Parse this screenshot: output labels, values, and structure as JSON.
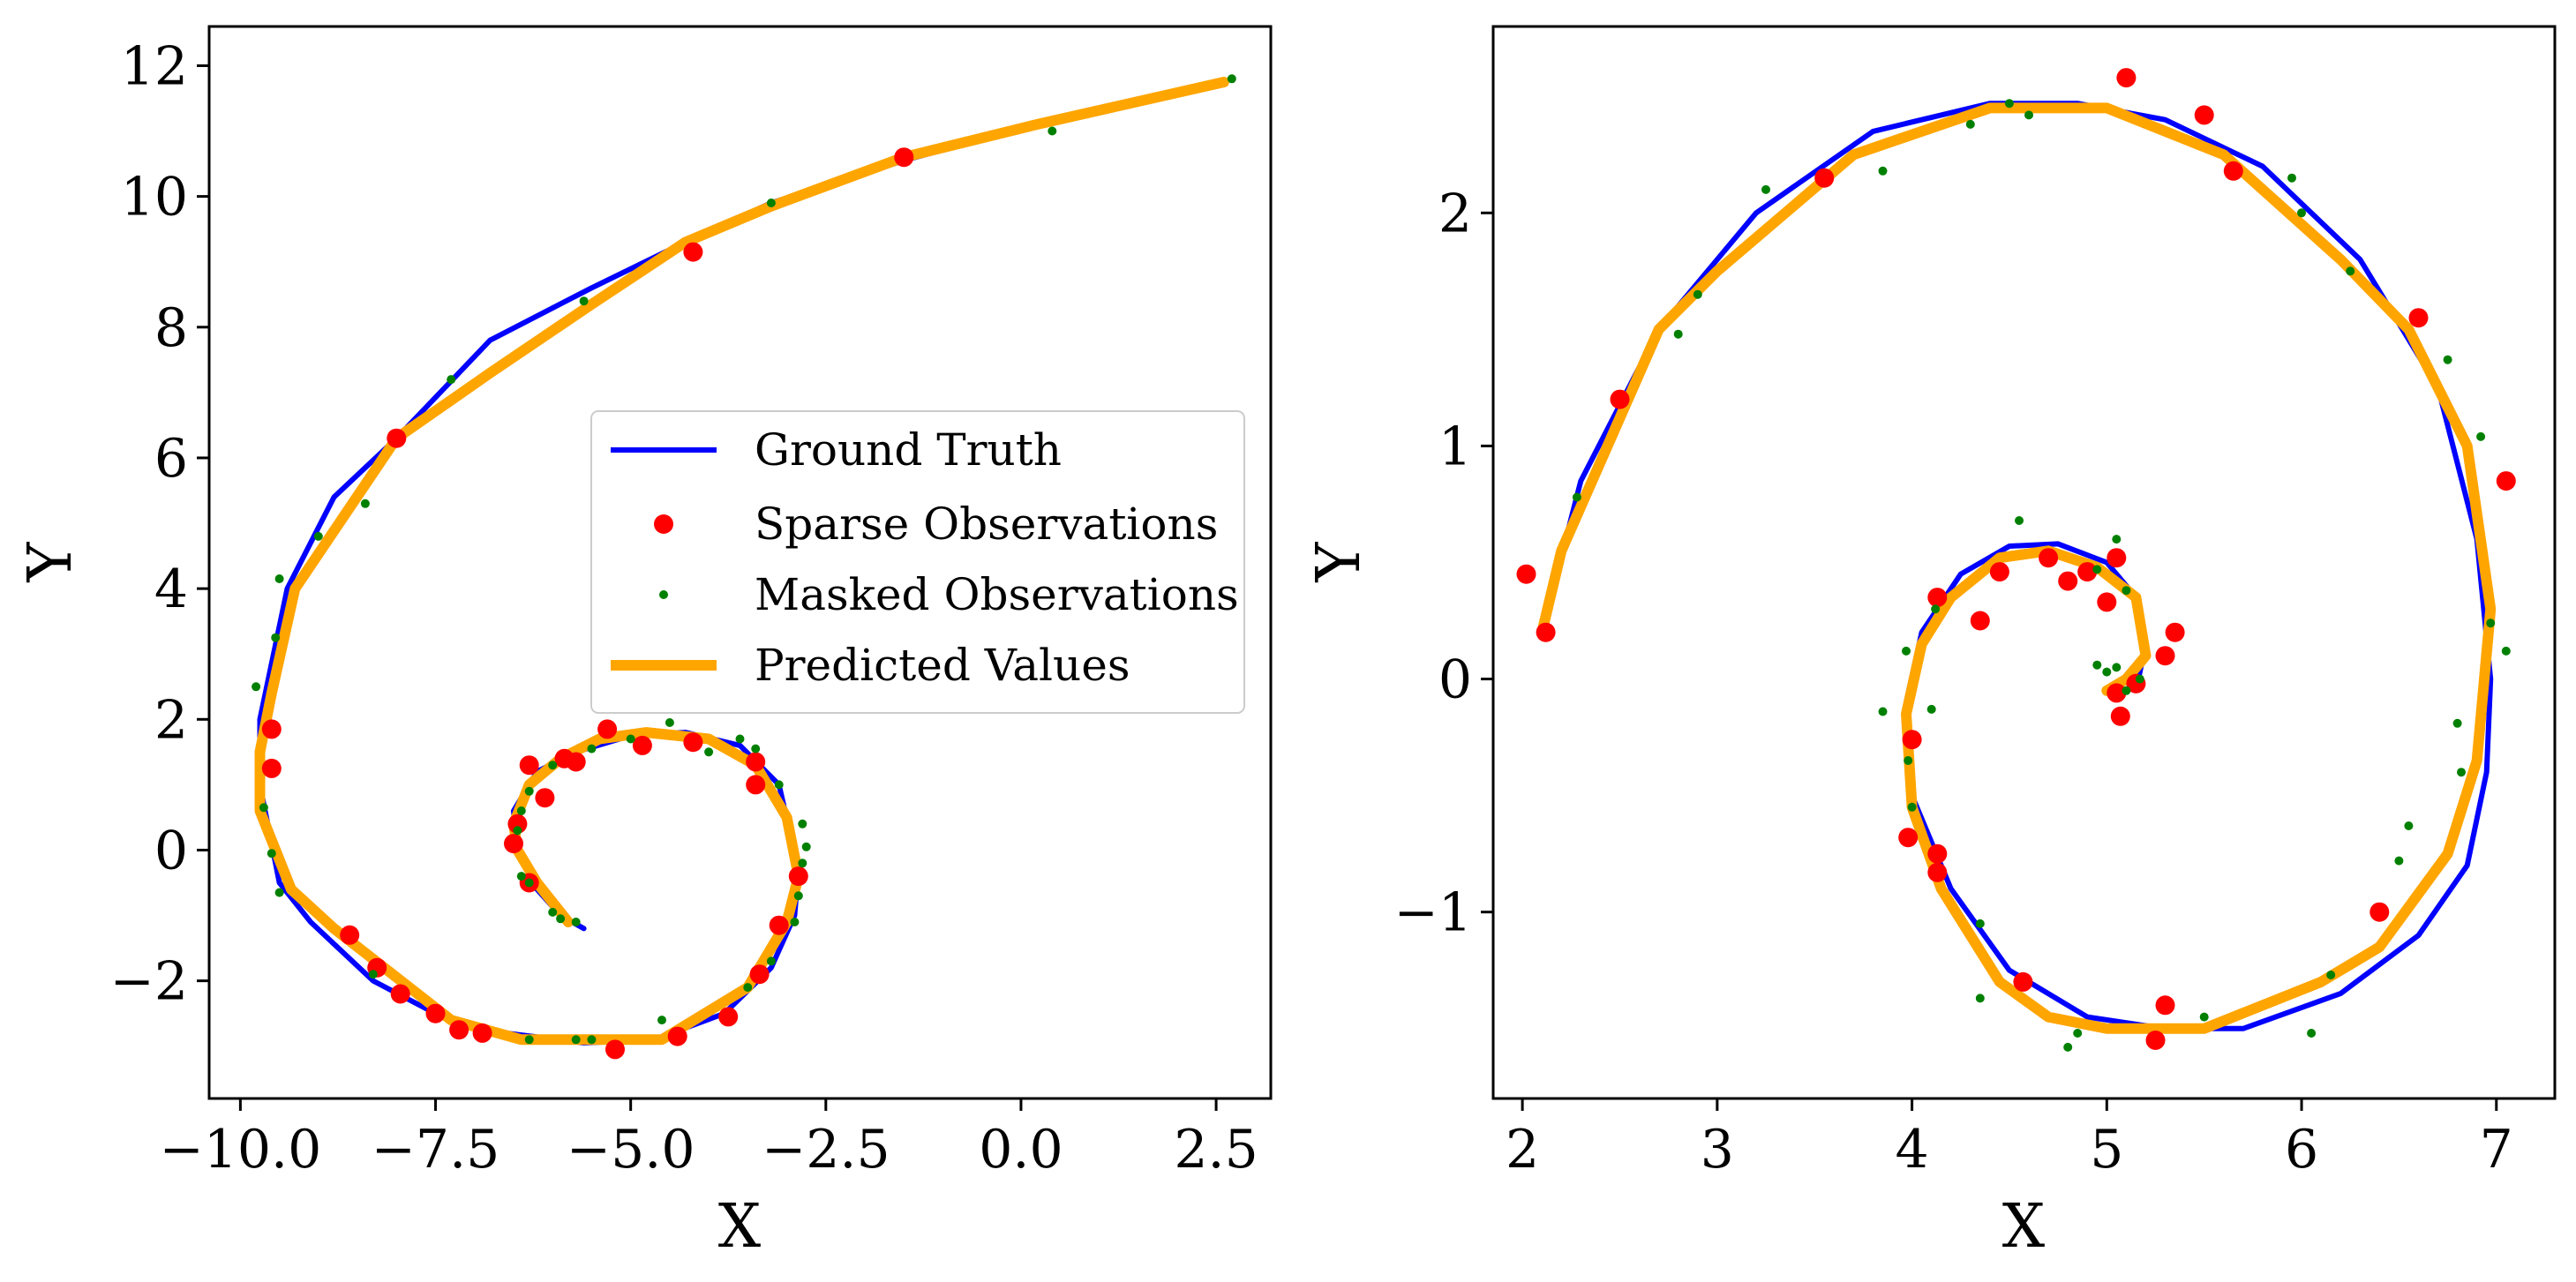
{
  "legend": {
    "ground_truth": "Ground Truth",
    "sparse": "Sparse Observations",
    "masked": "Masked Observations",
    "predicted": "Predicted Values"
  },
  "colors": {
    "ground_truth": "#0000ff",
    "sparse": "#ff0000",
    "masked": "#008000",
    "predicted": "#ffa500"
  },
  "chart_data": [
    {
      "type": "line",
      "xlabel": "X",
      "ylabel": "Y",
      "xlim": [
        -10.4,
        3.2
      ],
      "ylim": [
        -3.8,
        12.6
      ],
      "xticks": [
        -10.0,
        -7.5,
        -5.0,
        -2.5,
        0.0,
        2.5
      ],
      "xtick_labels": [
        "−10.0",
        "−7.5",
        "−5.0",
        "−2.5",
        "0.0",
        "2.5"
      ],
      "yticks": [
        -2,
        0,
        2,
        4,
        6,
        8,
        10,
        12
      ],
      "ytick_labels": [
        "−2",
        "0",
        "2",
        "4",
        "6",
        "8",
        "10",
        "12"
      ],
      "legend_position": "center-right",
      "series": [
        {
          "name": "Ground Truth",
          "kind": "line",
          "x": [
            2.6,
            0.2,
            -1.5,
            -3.2,
            -4.3,
            -5.5,
            -6.8,
            -8.0,
            -8.8,
            -9.4,
            -9.75,
            -9.75,
            -9.5,
            -9.1,
            -8.3,
            -7.5,
            -6.6,
            -5.6,
            -4.7,
            -3.8,
            -3.2,
            -2.9,
            -2.85,
            -3.1,
            -3.6,
            -4.3,
            -5.0,
            -5.7,
            -6.2,
            -6.5,
            -6.45,
            -6.2,
            -5.9,
            -5.6
          ],
          "y": [
            11.75,
            11.1,
            10.55,
            9.9,
            9.3,
            8.6,
            7.8,
            6.3,
            5.4,
            4.0,
            2.0,
            1.0,
            -0.5,
            -1.1,
            -2.0,
            -2.5,
            -2.8,
            -2.95,
            -2.9,
            -2.5,
            -1.8,
            -1.0,
            -0.3,
            1.0,
            1.6,
            1.8,
            1.75,
            1.5,
            1.2,
            0.6,
            0.0,
            -0.6,
            -1.0,
            -1.2
          ]
        },
        {
          "name": "Predicted Values",
          "kind": "line",
          "x": [
            2.6,
            0.2,
            -1.5,
            -3.2,
            -4.3,
            -5.5,
            -6.8,
            -8.0,
            -9.3,
            -9.6,
            -9.75,
            -9.75,
            -9.35,
            -8.8,
            -7.3,
            -6.4,
            -4.6,
            -3.5,
            -3.0,
            -2.85,
            -3.0,
            -3.4,
            -4.0,
            -4.8,
            -5.4,
            -5.9,
            -6.3,
            -6.5,
            -6.45,
            -6.2,
            -5.8
          ],
          "y": [
            11.75,
            11.1,
            10.6,
            9.85,
            9.3,
            8.35,
            7.3,
            6.3,
            4.0,
            2.4,
            1.5,
            0.6,
            -0.6,
            -1.2,
            -2.6,
            -2.9,
            -2.9,
            -2.1,
            -1.1,
            -0.4,
            0.5,
            1.3,
            1.7,
            1.8,
            1.7,
            1.4,
            1.0,
            0.4,
            0.0,
            -0.5,
            -1.1
          ]
        },
        {
          "name": "Sparse Observations",
          "kind": "scatter",
          "x": [
            -1.5,
            -4.2,
            -8.0,
            -9.6,
            -9.6,
            -8.6,
            -8.25,
            -7.95,
            -7.5,
            -7.2,
            -6.9,
            -5.2,
            -4.4,
            -3.75,
            -3.35,
            -3.1,
            -2.85,
            -3.4,
            -3.4,
            -4.2,
            -4.85,
            -5.3,
            -5.7,
            -5.85,
            -6.1,
            -6.3,
            -6.45,
            -6.5,
            -6.3
          ],
          "y": [
            10.6,
            9.15,
            6.3,
            1.85,
            1.25,
            -1.3,
            -1.8,
            -2.2,
            -2.5,
            -2.75,
            -2.8,
            -3.05,
            -2.85,
            -2.55,
            -1.9,
            -1.15,
            -0.4,
            1.0,
            1.35,
            1.65,
            1.6,
            1.85,
            1.35,
            1.4,
            0.8,
            1.3,
            0.4,
            0.1,
            -0.5
          ]
        },
        {
          "name": "Masked Observations",
          "kind": "scatter",
          "x": [
            2.7,
            0.4,
            -3.2,
            -5.6,
            -7.3,
            -8.4,
            -9.0,
            -9.5,
            -9.55,
            -9.8,
            -9.7,
            -9.6,
            -9.5,
            -8.3,
            -6.3,
            -5.7,
            -5.5,
            -4.6,
            -3.5,
            -3.2,
            -2.9,
            -2.85,
            -2.8,
            -2.75,
            -2.8,
            -3.1,
            -3.4,
            -3.6,
            -4.0,
            -4.5,
            -5.0,
            -5.5,
            -6.0,
            -6.3,
            -6.4,
            -6.45,
            -6.4,
            -6.3,
            -6.0,
            -5.9,
            -5.7
          ],
          "y": [
            11.8,
            11.0,
            9.9,
            8.4,
            7.2,
            5.3,
            4.8,
            4.15,
            3.25,
            2.5,
            0.65,
            -0.05,
            -0.65,
            -1.9,
            -2.9,
            -2.9,
            -2.9,
            -2.6,
            -2.1,
            -1.7,
            -1.1,
            -0.7,
            -0.2,
            0.05,
            0.4,
            1.0,
            1.55,
            1.7,
            1.5,
            1.95,
            1.7,
            1.55,
            1.3,
            0.9,
            0.6,
            0.3,
            -0.4,
            -0.5,
            -0.95,
            -1.05,
            -1.1
          ]
        }
      ]
    },
    {
      "type": "line",
      "xlabel": "X",
      "ylabel": "Y",
      "xlim": [
        1.85,
        7.3
      ],
      "ylim": [
        -1.8,
        2.8
      ],
      "xticks": [
        2,
        3,
        4,
        5,
        6,
        7
      ],
      "xtick_labels": [
        "2",
        "3",
        "4",
        "5",
        "6",
        "7"
      ],
      "yticks": [
        -1,
        0,
        1,
        2
      ],
      "ytick_labels": [
        "−1",
        "0",
        "1",
        "2"
      ],
      "series": [
        {
          "name": "Ground Truth",
          "kind": "line",
          "x": [
            2.1,
            2.3,
            2.7,
            3.2,
            3.8,
            4.4,
            4.85,
            5.3,
            5.8,
            6.3,
            6.7,
            6.9,
            6.97,
            6.95,
            6.85,
            6.6,
            6.2,
            5.7,
            5.3,
            4.9,
            4.5,
            4.2,
            4.0,
            3.97,
            4.05,
            4.25,
            4.5,
            4.75,
            5.0,
            5.15,
            5.2,
            5.15
          ],
          "y": [
            0.2,
            0.85,
            1.5,
            2.0,
            2.35,
            2.47,
            2.47,
            2.4,
            2.2,
            1.8,
            1.25,
            0.6,
            0.0,
            -0.4,
            -0.8,
            -1.1,
            -1.35,
            -1.5,
            -1.5,
            -1.45,
            -1.25,
            -0.9,
            -0.5,
            -0.1,
            0.2,
            0.45,
            0.57,
            0.58,
            0.5,
            0.35,
            0.15,
            -0.05
          ]
        },
        {
          "name": "Predicted Values",
          "kind": "line",
          "x": [
            2.1,
            2.2,
            2.7,
            3.0,
            3.7,
            4.4,
            5.0,
            5.6,
            6.2,
            6.55,
            6.85,
            6.97,
            6.9,
            6.75,
            6.4,
            6.1,
            5.5,
            5.0,
            4.7,
            4.45,
            4.15,
            4.0,
            3.97,
            4.05,
            4.2,
            4.45,
            4.7,
            4.95,
            5.15,
            5.2,
            5.1,
            5.0
          ],
          "y": [
            0.2,
            0.55,
            1.5,
            1.75,
            2.25,
            2.45,
            2.45,
            2.25,
            1.8,
            1.5,
            1.0,
            0.3,
            -0.35,
            -0.75,
            -1.15,
            -1.3,
            -1.5,
            -1.5,
            -1.45,
            -1.3,
            -0.9,
            -0.55,
            -0.15,
            0.15,
            0.35,
            0.52,
            0.55,
            0.48,
            0.35,
            0.1,
            0.0,
            -0.05
          ]
        },
        {
          "name": "Sparse Observations",
          "kind": "scatter",
          "x": [
            2.02,
            2.12,
            2.5,
            3.55,
            5.1,
            5.5,
            5.65,
            6.6,
            7.05,
            6.4,
            5.3,
            5.25,
            4.57,
            4.13,
            4.13,
            3.98,
            4.0,
            4.13,
            4.35,
            4.45,
            4.7,
            4.8,
            4.9,
            5.0,
            5.05,
            5.35,
            5.3,
            5.15,
            5.05,
            5.07
          ],
          "y": [
            0.45,
            0.2,
            1.2,
            2.15,
            2.58,
            2.42,
            2.18,
            1.55,
            0.85,
            -1.0,
            -1.4,
            -1.55,
            -1.3,
            -0.75,
            -0.83,
            -0.68,
            -0.26,
            0.35,
            0.25,
            0.46,
            0.52,
            0.42,
            0.46,
            0.33,
            0.52,
            0.2,
            0.1,
            -0.02,
            -0.06,
            -0.16
          ]
        },
        {
          "name": "Masked Observations",
          "kind": "scatter",
          "x": [
            2.28,
            2.8,
            2.9,
            3.25,
            3.85,
            4.3,
            4.5,
            4.6,
            5.95,
            6.0,
            6.25,
            6.75,
            6.92,
            6.97,
            7.05,
            6.8,
            6.82,
            6.55,
            6.5,
            6.15,
            6.05,
            5.5,
            4.85,
            4.8,
            4.35,
            4.35,
            4.0,
            3.98,
            3.85,
            3.97,
            4.12,
            4.1,
            4.55,
            4.95,
            5.05,
            5.1,
            5.05,
            5.1,
            5.17,
            4.95,
            5.0
          ],
          "y": [
            0.78,
            1.48,
            1.65,
            2.1,
            2.18,
            2.38,
            2.47,
            2.42,
            2.15,
            2.0,
            1.75,
            1.37,
            1.04,
            0.24,
            0.12,
            -0.19,
            -0.4,
            -0.63,
            -0.78,
            -1.27,
            -1.52,
            -1.45,
            -1.52,
            -1.58,
            -1.37,
            -1.05,
            -0.55,
            -0.35,
            -0.14,
            0.12,
            0.3,
            -0.13,
            0.68,
            0.47,
            0.6,
            0.38,
            0.05,
            -0.05,
            0.0,
            0.06,
            0.03
          ]
        }
      ]
    }
  ]
}
